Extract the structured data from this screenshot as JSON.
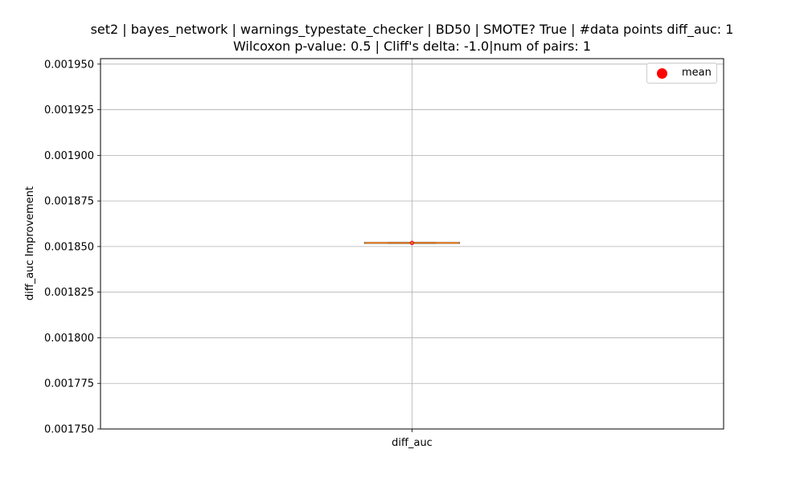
{
  "chart_data": {
    "type": "box",
    "title_line1": "set2 | bayes_network | warnings_typestate_checker | BD50 | SMOTE? True | #data points diff_auc: 1",
    "title_line2": "Wilcoxon p-value: 0.5 | Cliff's delta: -1.0|num of pairs: 1",
    "xlabel": "",
    "ylabel": "diff_auc Improvement",
    "categories": [
      "diff_auc"
    ],
    "ylim": [
      0.00175,
      0.001953
    ],
    "yticks": [
      0.00175,
      0.001775,
      0.0018,
      0.001825,
      0.00185,
      0.001875,
      0.0019,
      0.001925,
      0.00195
    ],
    "ytick_labels": [
      "0.001750",
      "0.001775",
      "0.001800",
      "0.001825",
      "0.001850",
      "0.001875",
      "0.001900",
      "0.001925",
      "0.001950"
    ],
    "grid": true,
    "series": [
      {
        "category": "diff_auc",
        "min": 0.001852,
        "q1": 0.001852,
        "median": 0.001852,
        "q3": 0.001852,
        "max": 0.001852,
        "mean": 0.001852
      }
    ],
    "legend": {
      "position": "top-right",
      "entries": [
        {
          "label": "mean",
          "marker": "circle",
          "color": "#ff0000"
        }
      ]
    },
    "colors": {
      "median": "#ff7f0e",
      "mean": "#ff0000",
      "grid": "#b0b0b0",
      "box": "#000000"
    }
  }
}
